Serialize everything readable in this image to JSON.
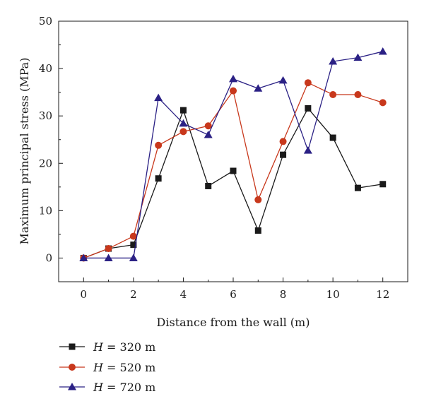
{
  "chart_data": {
    "type": "line",
    "title": "",
    "xlabel": "Distance from the wall (m)",
    "ylabel": "Maximum principal stress (MPa)",
    "xlim": [
      -1,
      13
    ],
    "ylim": [
      -5,
      50
    ],
    "xticks": [
      0,
      2,
      4,
      6,
      8,
      10,
      12
    ],
    "yticks": [
      0,
      10,
      20,
      30,
      40,
      50
    ],
    "grid": false,
    "legend_position": "bottom-left",
    "x": [
      0,
      1,
      2,
      3,
      4,
      5,
      6,
      7,
      8,
      9,
      10,
      11,
      12
    ],
    "series": [
      {
        "name": "H = 320 m",
        "name_italic": "H",
        "name_rest": " = 320 m",
        "color": "#1a1a1a",
        "marker": "square",
        "values": [
          0,
          2,
          2.8,
          16.8,
          31.2,
          15.2,
          18.4,
          5.8,
          21.8,
          31.6,
          25.4,
          14.8,
          15.6
        ]
      },
      {
        "name": "H = 520 m",
        "name_italic": "H",
        "name_rest": " = 520 m",
        "color": "#c8381c",
        "marker": "circle",
        "values": [
          0,
          2,
          4.6,
          23.8,
          26.7,
          27.9,
          35.3,
          12.3,
          24.6,
          37.0,
          34.5,
          34.5,
          32.8
        ]
      },
      {
        "name": "H = 720 m",
        "name_italic": "H",
        "name_rest": " = 720 m",
        "color": "#2b2185",
        "marker": "triangle",
        "values": [
          0,
          0,
          0,
          33.8,
          28.4,
          26.0,
          37.8,
          35.8,
          37.5,
          22.7,
          41.5,
          42.3,
          43.6
        ]
      }
    ]
  }
}
